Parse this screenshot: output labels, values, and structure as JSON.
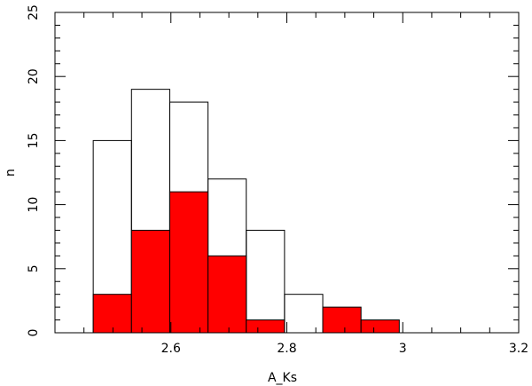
{
  "chart_data": {
    "type": "bar",
    "subtype": "histogram",
    "xlabel": "A_Ks",
    "ylabel": "n",
    "xlim": [
      2.4,
      3.2
    ],
    "ylim": [
      0,
      25
    ],
    "bin_width": 0.066,
    "bin_starts": [
      2.466,
      2.532,
      2.598,
      2.664,
      2.73,
      2.796,
      2.862,
      2.928
    ],
    "x_ticks": [
      2.6,
      2.8,
      3,
      3.2
    ],
    "x_tick_labels": [
      "2.6",
      "2.8",
      "3",
      "3.2"
    ],
    "y_ticks": [
      0,
      5,
      10,
      15,
      20,
      25
    ],
    "y_tick_labels": [
      "0",
      "5",
      "10",
      "15",
      "20",
      "25"
    ],
    "series": [
      {
        "style": "outline",
        "color": "#000000",
        "values": [
          15,
          19,
          18,
          12,
          8,
          3,
          0,
          0
        ]
      },
      {
        "style": "filled",
        "color": "#ff0000",
        "values": [
          3,
          8,
          11,
          6,
          1,
          0,
          2,
          1
        ]
      }
    ],
    "grid": false
  }
}
